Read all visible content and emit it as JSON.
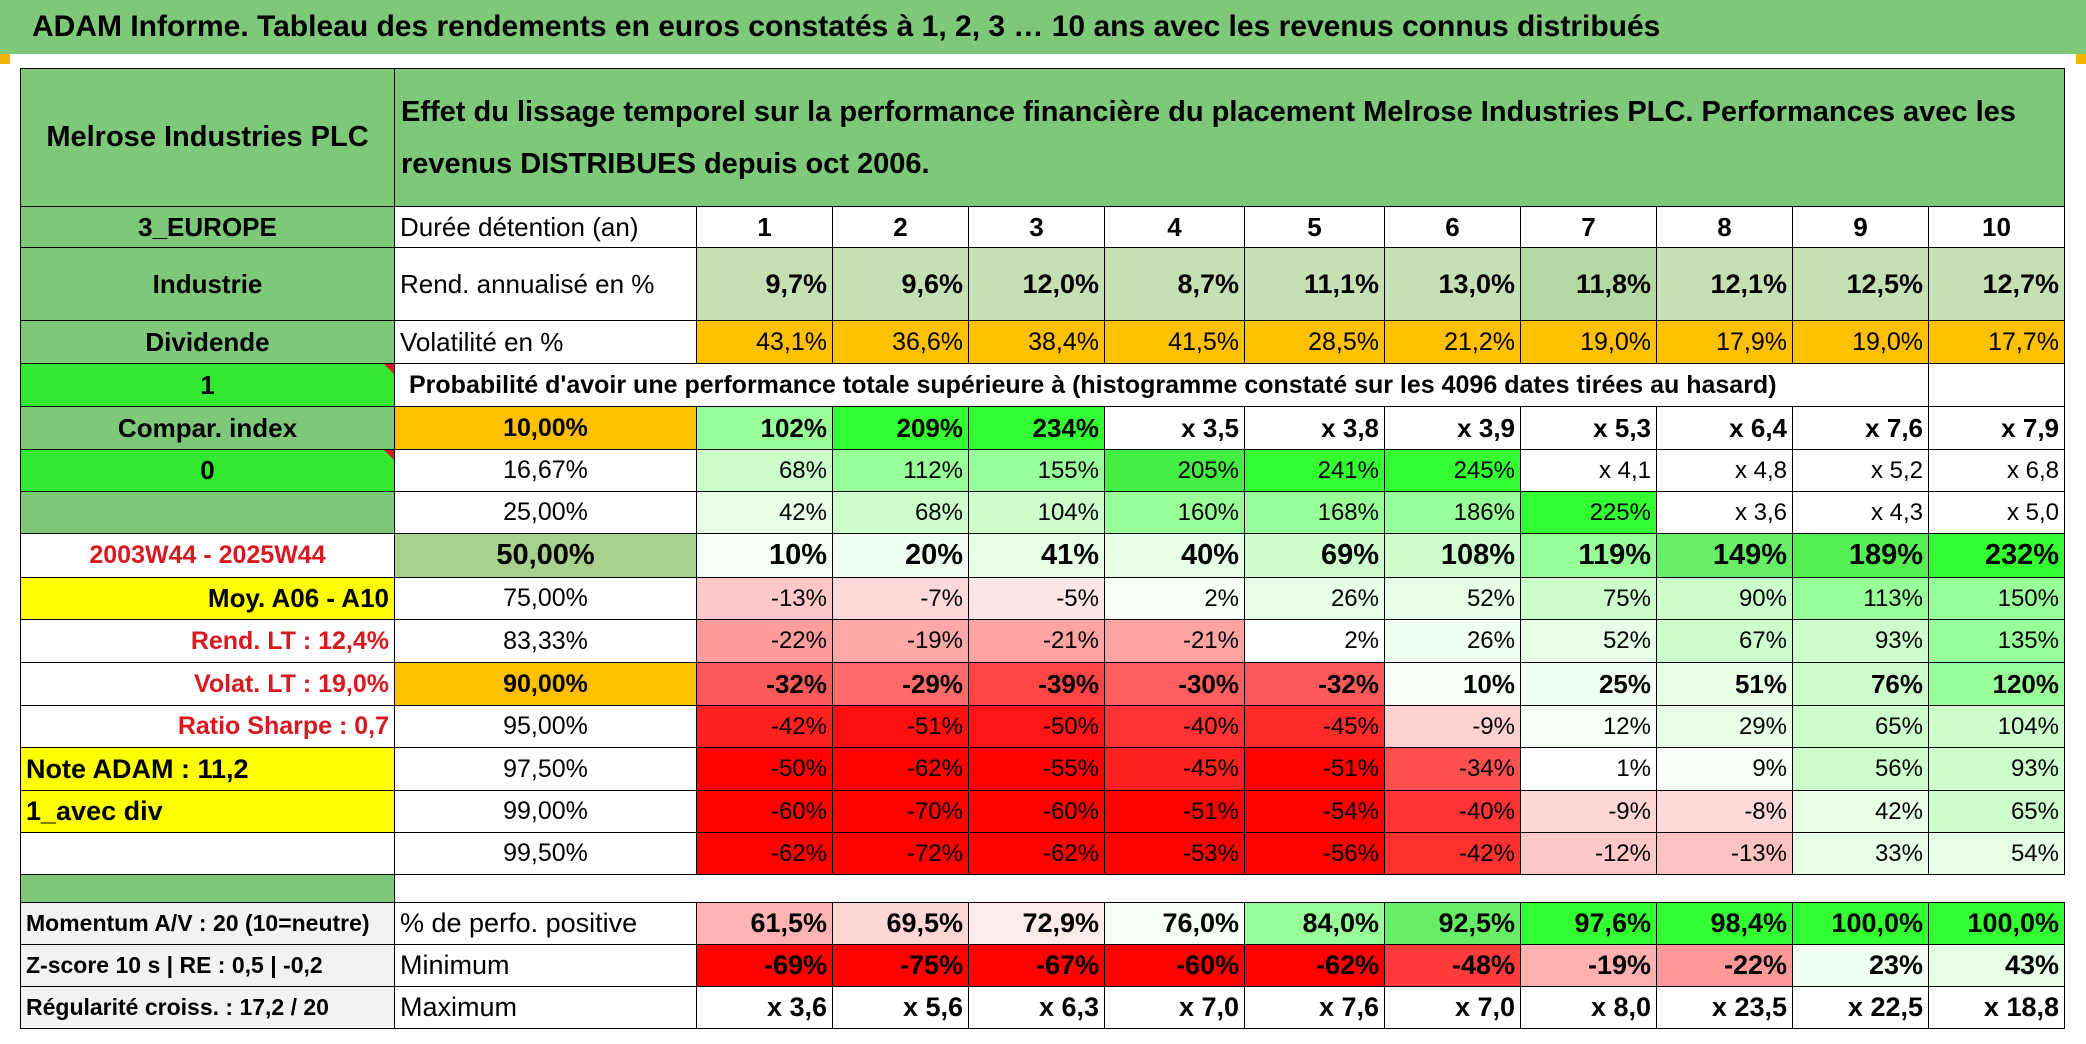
{
  "header": {
    "title": "ADAM Informe. Tableau des rendements en euros constatés à 1, 2, 3 … 10 ans avec les revenus connus distribués"
  },
  "company": "Melrose Industries PLC",
  "description": "Effet du lissage temporel sur la performance financière du placement Melrose Industries PLC. Performances avec les revenus DISTRIBUES depuis oct 2006.",
  "left_panel": {
    "region": "3_EUROPE",
    "sector": "Industrie",
    "dividend": "Dividende",
    "flag1": "1",
    "compar_index": "Compar. index",
    "flag0": "0",
    "period": "2003W44 - 2025W44",
    "moy": "Moy. A06 - A10",
    "rend_lt": "Rend. LT :   12,4%",
    "volat_lt": "Volat. LT :   19,0%",
    "sharpe": "Ratio Sharpe :    0,7",
    "note": "Note ADAM : 11,2",
    "avec_div": "1_avec div",
    "momentum": "Momentum A/V : 20 (10=neutre)",
    "zscore": "Z-score 10 s | RE : 0,5 | -0,2",
    "regularite": "Régularité croiss. : 17,2 / 20"
  },
  "table": {
    "duree_label": "Durée détention (an)",
    "years": [
      "1",
      "2",
      "3",
      "4",
      "5",
      "6",
      "7",
      "8",
      "9",
      "10"
    ],
    "rend_label": "Rend. annualisé en %",
    "rend": [
      "9,7%",
      "9,6%",
      "12,0%",
      "8,7%",
      "11,1%",
      "13,0%",
      "11,8%",
      "12,1%",
      "12,5%",
      "12,7%"
    ],
    "vol_label": "Volatilité en %",
    "vol": [
      "43,1%",
      "36,6%",
      "38,4%",
      "41,5%",
      "28,5%",
      "21,2%",
      "19,0%",
      "17,9%",
      "19,0%",
      "17,7%"
    ],
    "proba_label": "Probabilité d'avoir une performance totale supérieure à (histogramme constaté sur les 4096 dates tirées au hasard)",
    "proba_rows": [
      {
        "p": "10,00%",
        "values": [
          "102%",
          "209%",
          "234%",
          "x 3,5",
          "x 3,8",
          "x 3,9",
          "x 5,3",
          "x 6,4",
          "x 7,6",
          "x 7,9"
        ]
      },
      {
        "p": "16,67%",
        "values": [
          "68%",
          "112%",
          "155%",
          "205%",
          "241%",
          "245%",
          "x 4,1",
          "x 4,8",
          "x 5,2",
          "x 6,8"
        ]
      },
      {
        "p": "25,00%",
        "values": [
          "42%",
          "68%",
          "104%",
          "160%",
          "168%",
          "186%",
          "225%",
          "x 3,6",
          "x 4,3",
          "x 5,0"
        ]
      },
      {
        "p": "50,00%",
        "values": [
          "10%",
          "20%",
          "41%",
          "40%",
          "69%",
          "108%",
          "119%",
          "149%",
          "189%",
          "232%"
        ]
      },
      {
        "p": "75,00%",
        "values": [
          "-13%",
          "-7%",
          "-5%",
          "2%",
          "26%",
          "52%",
          "75%",
          "90%",
          "113%",
          "150%"
        ]
      },
      {
        "p": "83,33%",
        "values": [
          "-22%",
          "-19%",
          "-21%",
          "-21%",
          "2%",
          "26%",
          "52%",
          "67%",
          "93%",
          "135%"
        ]
      },
      {
        "p": "90,00%",
        "values": [
          "-32%",
          "-29%",
          "-39%",
          "-30%",
          "-32%",
          "10%",
          "25%",
          "51%",
          "76%",
          "120%"
        ]
      },
      {
        "p": "95,00%",
        "values": [
          "-42%",
          "-51%",
          "-50%",
          "-40%",
          "-45%",
          "-9%",
          "12%",
          "29%",
          "65%",
          "104%"
        ]
      },
      {
        "p": "97,50%",
        "values": [
          "-50%",
          "-62%",
          "-55%",
          "-45%",
          "-51%",
          "-34%",
          "1%",
          "9%",
          "56%",
          "93%"
        ]
      },
      {
        "p": "99,00%",
        "values": [
          "-60%",
          "-70%",
          "-60%",
          "-51%",
          "-54%",
          "-40%",
          "-9%",
          "-8%",
          "42%",
          "65%"
        ]
      },
      {
        "p": "99,50%",
        "values": [
          "-62%",
          "-72%",
          "-62%",
          "-53%",
          "-56%",
          "-42%",
          "-12%",
          "-13%",
          "33%",
          "54%"
        ]
      }
    ],
    "pos_label": "% de perfo. positive",
    "pos": [
      "61,5%",
      "69,5%",
      "72,9%",
      "76,0%",
      "84,0%",
      "92,5%",
      "97,6%",
      "98,4%",
      "100,0%",
      "100,0%"
    ],
    "min_label": "Minimum",
    "min": [
      "-69%",
      "-75%",
      "-67%",
      "-60%",
      "-62%",
      "-48%",
      "-19%",
      "-22%",
      "23%",
      "43%"
    ],
    "max_label": "Maximum",
    "max": [
      "x 3,6",
      "x 5,6",
      "x 6,3",
      "x 7,0",
      "x 7,6",
      "x 7,0",
      "x 8,0",
      "x 23,5",
      "x 22,5",
      "x 18,8"
    ]
  },
  "colors": {
    "header_green": "#7ec87a",
    "bright_green": "#33e833",
    "orange": "#ffc000",
    "yellow": "#ffff00",
    "label_red": "#d71920"
  }
}
